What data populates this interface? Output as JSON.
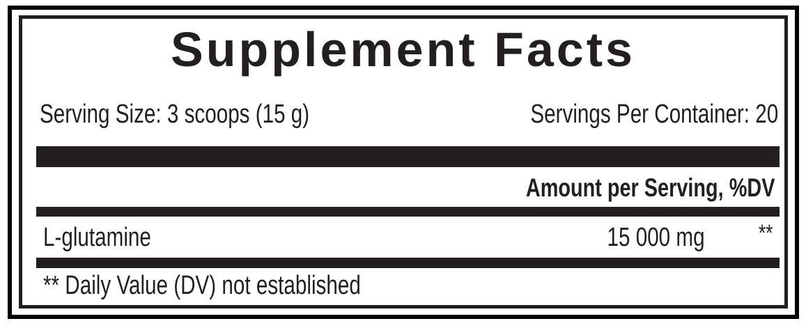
{
  "label": {
    "title": "Supplement Facts",
    "serving_size": "Serving Size: 3 scoops (15 g)",
    "servings_per_container": "Servings Per Container: 20",
    "amount_header": "Amount per Serving, %DV",
    "ingredients": [
      {
        "name": "L-glutamine",
        "amount": "15 000 mg",
        "dv": "**"
      }
    ],
    "footnote": "** Daily Value (DV) not established"
  }
}
